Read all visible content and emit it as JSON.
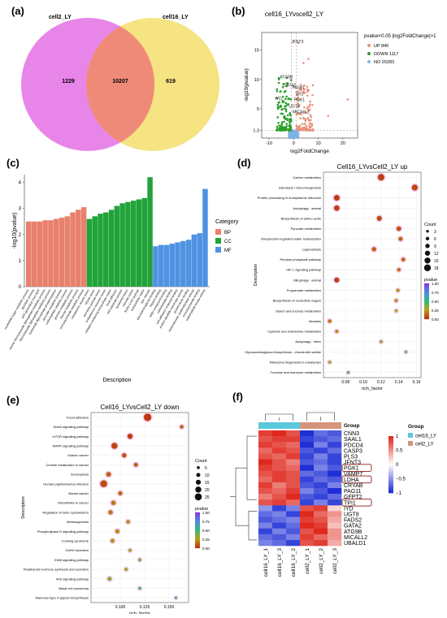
{
  "panels": {
    "a": {
      "label": "(a)",
      "chart_data": {
        "type": "venn",
        "sets": [
          "cell2_LY",
          "cell16_LY"
        ],
        "values": {
          "left_only": "1229",
          "overlap": "10207",
          "right_only": "619"
        },
        "colors": [
          "#e77ee8",
          "#f5e27a",
          "#f08a78"
        ]
      }
    },
    "b": {
      "label": "(b)",
      "chart_data": {
        "type": "scatter",
        "title": "cell16_LYvscell2_LY",
        "xlabel": "log2FoldChange",
        "ylabel": "-log10(pvalue)",
        "xticks": [
          "-10",
          "0",
          "10",
          "20"
        ],
        "yticks": [
          "1.3",
          "5",
          "10",
          "15"
        ],
        "xlim": [
          -13,
          26
        ],
        "ylim": [
          0,
          18
        ],
        "legend_title": "pvalue<0.05 |log2FoldChange|>1",
        "legend": [
          {
            "label": "UP 840",
            "color": "#e8927c"
          },
          {
            "label": "DOWN 1117",
            "color": "#2ca02c"
          },
          {
            "label": "NO 20283",
            "color": "#7fb3e6"
          }
        ],
        "gene_labels": [
          {
            "text": "JFNT3",
            "x": 1.5,
            "y": 16.2
          },
          {
            "text": "ATG9B",
            "x": -3.0,
            "y": 10.2
          },
          {
            "text": "GATA2",
            "x": -1.6,
            "y": 8.8
          },
          {
            "text": "PAG11",
            "x": 2.0,
            "y": 8.4
          },
          {
            "text": "TPI1",
            "x": 2.2,
            "y": 7.3
          },
          {
            "text": "PGK1",
            "x": 2.3,
            "y": 6.3
          },
          {
            "text": "IYD",
            "x": -6.2,
            "y": 6.5
          },
          {
            "text": "UGT8",
            "x": 0.2,
            "y": 5.2
          },
          {
            "text": "MICALL2",
            "x": 3.0,
            "y": 4.2
          }
        ]
      }
    },
    "c": {
      "label": "(c)",
      "chart_data": {
        "type": "bar",
        "ylabel": "-log10(pvalue)",
        "xlabel": "Description",
        "ylim": [
          0,
          4.3
        ],
        "yticks": [
          "0",
          "1",
          "2",
          "3",
          "4"
        ],
        "legend_title": "Category",
        "legend": [
          {
            "label": "BP",
            "color": "#e8806e"
          },
          {
            "label": "CC",
            "color": "#22a33a"
          },
          {
            "label": "MF",
            "color": "#4f92e2"
          }
        ],
        "categories": [
          "nucleotide-sugar metabolic process",
          "glycolytic process",
          "ATP generation from ADP",
          "purine ribonucleoside diphosphate metabolic process",
          "ribonucleoside diphosphate metabolic process",
          "nucleoside diphosphate phosphorylation",
          "pyruvate metabolic process",
          "carbohydrate catabolic process",
          "glucose metabolic process",
          "hexose metabolic process",
          "monosaccharide metabolic process",
          "cytoplasmic vesicle lumen",
          "vesicle lumen",
          "secretory granule lumen",
          "endoplasmic reticulum lumen",
          "collagen-containing extracellular matrix",
          "focal adhesion",
          "cell-substrate junction",
          "lysosomal lumen",
          "vacuolar lumen",
          "ficolin-1-rich granule",
          "extracellular matrix",
          "lytic vacuole",
          "glycosaminoglycan binding",
          "heparin binding",
          "sulfur compound binding",
          "carbohydrate binding",
          "cell adhesion molecule binding",
          "protein disulfide isomerase activity",
          "growth factor binding",
          "intramolecular oxidoreductase activity",
          "monosaccharide binding",
          "carbohydrate kinase activity"
        ],
        "category_groups": [
          "BP",
          "BP",
          "BP",
          "BP",
          "BP",
          "BP",
          "BP",
          "BP",
          "BP",
          "BP",
          "BP",
          "CC",
          "CC",
          "CC",
          "CC",
          "CC",
          "CC",
          "CC",
          "CC",
          "CC",
          "CC",
          "CC",
          "CC",
          "MF",
          "MF",
          "MF",
          "MF",
          "MF",
          "MF",
          "MF",
          "MF",
          "MF",
          "MF"
        ],
        "values": [
          2.5,
          2.5,
          2.5,
          2.55,
          2.55,
          2.6,
          2.65,
          2.7,
          2.85,
          2.95,
          3.05,
          2.6,
          2.7,
          2.8,
          2.85,
          2.95,
          3.1,
          3.2,
          3.25,
          3.3,
          3.35,
          3.4,
          4.2,
          1.55,
          1.6,
          1.6,
          1.65,
          1.7,
          1.75,
          1.8,
          2.0,
          2.05,
          3.75
        ]
      }
    },
    "d": {
      "label": "(d)",
      "chart_data": {
        "type": "scatter",
        "title": "Cell16_LYvsCell2_LY up",
        "xlabel": "rich_factor",
        "ylabel": "Description",
        "xlim": [
          0.055,
          0.165
        ],
        "xticks": [
          "0.08",
          "0.10",
          "0.12",
          "0.14",
          "0.16"
        ],
        "size_title": "Count",
        "size_legend": [
          "3",
          "6",
          "9",
          "12",
          "15",
          "18"
        ],
        "color_title": "pvalue",
        "color_ticks": [
          "1.00",
          "0.75",
          "0.50",
          "0.25",
          "0.00"
        ],
        "terms": [
          "Carbon metabolism",
          "Glycolysis / Gluconeogenesis",
          "Protein processing in endoplasmic reticulum",
          "Autophagy - animal",
          "Biosynthesis of amino acids",
          "Pyruvate metabolism",
          "Vasopressin-regulated water reabsorption",
          "Legionellosis",
          "Pentose phosphate pathway",
          "HIF-1 signaling pathway",
          "Mitophagy - animal",
          "Propanoate metabolism",
          "Biosynthesis of nucleotide sugars",
          "Starch and sucrose metabolism",
          "Measles",
          "Cysteine and methionine metabolism",
          "Autophagy - other",
          "Glycosaminoglycan biosynthesis - chondroitin sulfate",
          "Ribosome biogenesis in eukaryotes",
          "Fructose and mannose metabolism"
        ],
        "x": [
          0.12,
          0.158,
          0.07,
          0.07,
          0.118,
          0.14,
          0.142,
          0.112,
          0.145,
          0.14,
          0.07,
          0.139,
          0.137,
          0.137,
          0.062,
          0.07,
          0.12,
          0.148,
          0.062,
          0.083
        ],
        "count": [
          17,
          15,
          14,
          13,
          11,
          10,
          8,
          9,
          7,
          6,
          11,
          5,
          5,
          4,
          6,
          5,
          4,
          3,
          4,
          3
        ],
        "pvalue": [
          0.02,
          0.04,
          0.01,
          0.02,
          0.05,
          0.08,
          0.1,
          0.1,
          0.12,
          0.15,
          0.02,
          0.2,
          0.2,
          0.25,
          0.15,
          0.2,
          0.3,
          0.4,
          0.3,
          0.45
        ]
      }
    },
    "e": {
      "label": "(e)",
      "chart_data": {
        "type": "scatter",
        "title": "Cell16_LYvsCell2_LY down",
        "xlabel": "rich_factor",
        "ylabel": "Description",
        "xlim": [
          0.07,
          0.17
        ],
        "xticks": [
          "0.100",
          "0.125",
          "0.150"
        ],
        "size_title": "Count",
        "size_legend": [
          "5",
          "10",
          "15",
          "20",
          "25"
        ],
        "color_title": "pvalue",
        "color_ticks": [
          "1.00",
          "0.75",
          "0.50",
          "0.25",
          "0.00"
        ],
        "terms": [
          "Focal adhesion",
          "Notch signaling pathway",
          "mTOR signaling pathway",
          "MAPK signaling pathway",
          "Gastric cancer",
          "Choline metabolism in cancer",
          "Endocytosis",
          "Human papillomavirus infection",
          "Breast cancer",
          "MicroRNAs in cancer",
          "Regulation of actin cytoskeleton",
          "Melanogenesis",
          "Phospholipase D signaling pathway",
          "Cushing syndrome",
          "GnRH secretion",
          "ErbB signaling pathway",
          "Parathyroid hormone synthesis and secretion",
          "Wnt signaling pathway",
          "Basal cell carcinoma",
          "Mannose type O-glycan biosynthesis"
        ],
        "x": [
          0.128,
          0.163,
          0.11,
          0.094,
          0.104,
          0.116,
          0.088,
          0.083,
          0.1,
          0.093,
          0.09,
          0.108,
          0.097,
          0.092,
          0.11,
          0.12,
          0.106,
          0.089,
          0.12,
          0.157
        ],
        "count": [
          27,
          8,
          16,
          20,
          12,
          10,
          14,
          24,
          11,
          13,
          12,
          9,
          11,
          10,
          6,
          6,
          7,
          10,
          5,
          3
        ],
        "pvalue": [
          0.0,
          0.1,
          0.02,
          0.03,
          0.05,
          0.08,
          0.1,
          0.05,
          0.12,
          0.15,
          0.15,
          0.2,
          0.2,
          0.2,
          0.3,
          0.35,
          0.3,
          0.35,
          0.45,
          0.6
        ]
      }
    },
    "f": {
      "label": "(f)",
      "chart_data": {
        "type": "heatmap",
        "columns": [
          "cell16_LY_1",
          "cell16_LY_3",
          "cell16_LY_2",
          "cell2_LY_1",
          "cell2_LY_2",
          "cell2_LY_3"
        ],
        "column_groups": [
          "cell16_LY",
          "cell16_LY",
          "cell16_LY",
          "cell2_LY",
          "cell2_LY",
          "cell2_LY"
        ],
        "group_label": "Group",
        "legend_title": "Group",
        "legend": [
          {
            "label": "cell16_LY",
            "color": "#5bc8db"
          },
          {
            "label": "cell2_LY",
            "color": "#d4957c"
          }
        ],
        "scale_ticks": [
          "1",
          "0.5",
          "0",
          "−0.5",
          "−1"
        ],
        "rows": [
          "CNN3",
          "SAAL1",
          "PDCD4",
          "CASP3",
          "PLS3",
          "JFNT3",
          "PGK1",
          "VAMP7",
          "LDHA",
          "CRYAB",
          "PAG11",
          "GFPT2",
          "TPI1",
          "IYD",
          "UGT8",
          "FADS2",
          "GATA2",
          "ATG9B",
          "MICALL2",
          "UBALD1"
        ],
        "highlighted_rows": [
          "PGK1",
          "LDHA",
          "TPI1"
        ],
        "matrix": [
          [
            0.9,
            1.0,
            0.8,
            -1.0,
            -0.7,
            -0.8
          ],
          [
            0.8,
            0.9,
            0.9,
            -0.9,
            -0.8,
            -0.7
          ],
          [
            0.9,
            0.8,
            0.7,
            -1.0,
            -0.6,
            -0.9
          ],
          [
            0.7,
            0.9,
            0.8,
            -0.8,
            -0.9,
            -0.7
          ],
          [
            0.8,
            0.7,
            0.9,
            -0.9,
            -0.6,
            -0.9
          ],
          [
            1.0,
            0.8,
            0.6,
            -0.8,
            -0.7,
            -0.9
          ],
          [
            0.9,
            0.8,
            0.7,
            -1.0,
            -0.6,
            -0.8
          ],
          [
            0.8,
            0.9,
            0.8,
            -0.7,
            -0.8,
            -1.0
          ],
          [
            0.7,
            0.9,
            0.8,
            -0.9,
            -0.7,
            -0.8
          ],
          [
            0.9,
            0.6,
            0.8,
            -0.8,
            -0.9,
            -0.6
          ],
          [
            0.8,
            0.7,
            0.9,
            -0.6,
            -0.8,
            -1.0
          ],
          [
            0.6,
            0.8,
            1.0,
            -0.8,
            -0.9,
            -0.7
          ],
          [
            0.8,
            0.9,
            0.7,
            -0.9,
            -0.6,
            -0.9
          ],
          [
            -0.5,
            -0.9,
            -0.6,
            0.8,
            0.9,
            0.2
          ],
          [
            -0.7,
            -0.6,
            -0.9,
            1.0,
            0.7,
            0.5
          ],
          [
            -0.8,
            -0.7,
            -0.6,
            0.9,
            0.8,
            0.4
          ],
          [
            -0.6,
            -0.9,
            -0.7,
            1.0,
            0.9,
            0.3
          ],
          [
            -0.9,
            -0.6,
            -0.8,
            0.8,
            1.0,
            0.5
          ],
          [
            -0.7,
            -0.8,
            -0.6,
            0.9,
            0.7,
            0.5
          ],
          [
            -0.6,
            -0.7,
            -0.9,
            0.8,
            0.9,
            0.4
          ]
        ]
      }
    }
  }
}
